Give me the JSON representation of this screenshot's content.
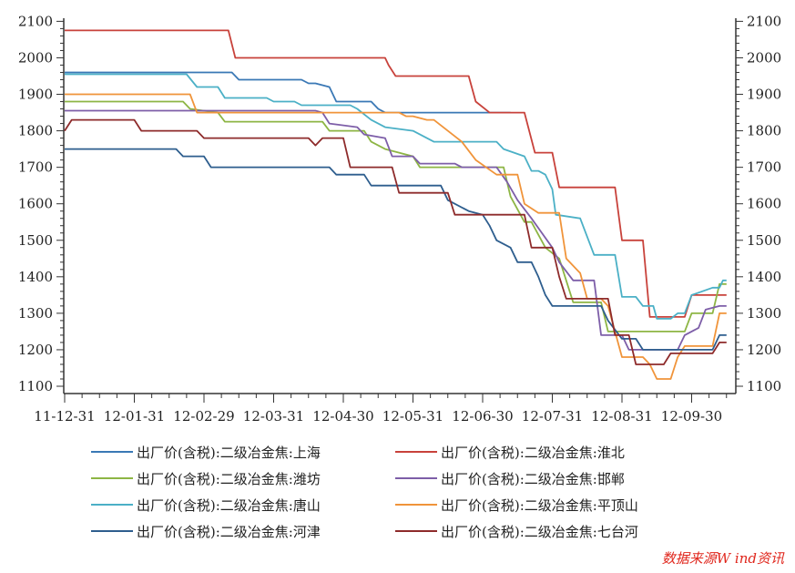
{
  "chart_data": {
    "type": "line",
    "title": "",
    "xlabel": "",
    "ylabel": "",
    "ylim": [
      1100,
      2100
    ],
    "yticks": [
      1100,
      1200,
      1300,
      1400,
      1500,
      1600,
      1700,
      1800,
      1900,
      2000,
      2100
    ],
    "y_axis_right": true,
    "grid": false,
    "legend_position": "bottom",
    "x_tick_labels": [
      "11-12-31",
      "12-01-31",
      "12-02-29",
      "12-03-31",
      "12-04-30",
      "12-05-31",
      "12-06-30",
      "12-07-31",
      "12-08-31",
      "12-09-30"
    ],
    "x_ticks_month_index": [
      0,
      1,
      2,
      3,
      4,
      5,
      6,
      7,
      8,
      9
    ],
    "x_range_month_index": [
      0,
      9.5
    ],
    "series": [
      {
        "name": "出厂价(含税):二级冶金焦:上海",
        "color": "#3a78b5",
        "points": [
          [
            0,
            1960
          ],
          [
            2.4,
            1960
          ],
          [
            2.5,
            1940
          ],
          [
            3.4,
            1940
          ],
          [
            3.5,
            1930
          ],
          [
            3.6,
            1930
          ],
          [
            3.8,
            1920
          ],
          [
            3.9,
            1880
          ],
          [
            4.4,
            1880
          ],
          [
            4.5,
            1860
          ],
          [
            4.6,
            1850
          ],
          [
            5.3,
            1850
          ],
          [
            6.3,
            1850
          ],
          [
            6.4,
            1850
          ]
        ]
      },
      {
        "name": "出厂价(含税):二级冶金焦:淮北",
        "color": "#c8423b",
        "points": [
          [
            0,
            2075
          ],
          [
            2.35,
            2075
          ],
          [
            2.45,
            2000
          ],
          [
            4.6,
            2000
          ],
          [
            4.65,
            1980
          ],
          [
            4.75,
            1950
          ],
          [
            5.8,
            1950
          ],
          [
            5.9,
            1880
          ],
          [
            6.1,
            1850
          ],
          [
            6.6,
            1850
          ],
          [
            6.75,
            1740
          ],
          [
            7.0,
            1740
          ],
          [
            7.1,
            1645
          ],
          [
            7.9,
            1645
          ],
          [
            8.0,
            1500
          ],
          [
            8.3,
            1500
          ],
          [
            8.4,
            1290
          ],
          [
            8.5,
            1290
          ],
          [
            8.9,
            1290
          ],
          [
            9.0,
            1350
          ],
          [
            9.5,
            1350
          ]
        ]
      },
      {
        "name": "出厂价(含税):二级冶金焦:潍坊",
        "color": "#8db544",
        "points": [
          [
            0,
            1880
          ],
          [
            1.7,
            1880
          ],
          [
            1.8,
            1860
          ],
          [
            2.2,
            1850
          ],
          [
            2.3,
            1825
          ],
          [
            3.7,
            1825
          ],
          [
            3.8,
            1800
          ],
          [
            4.3,
            1800
          ],
          [
            4.4,
            1770
          ],
          [
            4.6,
            1750
          ],
          [
            5.0,
            1730
          ],
          [
            5.1,
            1700
          ],
          [
            6.3,
            1700
          ],
          [
            6.4,
            1620
          ],
          [
            6.6,
            1550
          ],
          [
            6.7,
            1550
          ],
          [
            6.9,
            1480
          ],
          [
            7.1,
            1450
          ],
          [
            7.3,
            1330
          ],
          [
            7.7,
            1330
          ],
          [
            7.8,
            1250
          ],
          [
            8.8,
            1250
          ],
          [
            8.9,
            1250
          ],
          [
            9.0,
            1300
          ],
          [
            9.3,
            1300
          ],
          [
            9.4,
            1380
          ],
          [
            9.5,
            1380
          ]
        ]
      },
      {
        "name": "出厂价(含税):二级冶金焦:邯郸",
        "color": "#7d5ea8",
        "points": [
          [
            0,
            1855
          ],
          [
            3.6,
            1855
          ],
          [
            3.7,
            1850
          ],
          [
            3.8,
            1820
          ],
          [
            4.2,
            1810
          ],
          [
            4.3,
            1790
          ],
          [
            4.6,
            1780
          ],
          [
            4.7,
            1730
          ],
          [
            5.0,
            1730
          ],
          [
            5.1,
            1710
          ],
          [
            5.6,
            1710
          ],
          [
            5.7,
            1700
          ],
          [
            6.2,
            1700
          ],
          [
            6.35,
            1660
          ],
          [
            6.5,
            1610
          ],
          [
            6.7,
            1560
          ],
          [
            7.0,
            1480
          ],
          [
            7.1,
            1440
          ],
          [
            7.3,
            1390
          ],
          [
            7.6,
            1390
          ],
          [
            7.7,
            1240
          ],
          [
            8.0,
            1240
          ],
          [
            8.1,
            1200
          ],
          [
            8.8,
            1200
          ],
          [
            8.9,
            1240
          ],
          [
            9.1,
            1260
          ],
          [
            9.2,
            1310
          ],
          [
            9.4,
            1320
          ],
          [
            9.5,
            1320
          ]
        ]
      },
      {
        "name": "出厂价(含税):二级冶金焦:唐山",
        "color": "#4bb0c6",
        "points": [
          [
            0,
            1955
          ],
          [
            1.75,
            1955
          ],
          [
            1.9,
            1920
          ],
          [
            2.2,
            1920
          ],
          [
            2.3,
            1890
          ],
          [
            2.9,
            1890
          ],
          [
            3.0,
            1880
          ],
          [
            3.3,
            1880
          ],
          [
            3.4,
            1870
          ],
          [
            4.1,
            1870
          ],
          [
            4.2,
            1860
          ],
          [
            4.4,
            1830
          ],
          [
            4.6,
            1810
          ],
          [
            5.0,
            1800
          ],
          [
            5.3,
            1770
          ],
          [
            6.2,
            1770
          ],
          [
            6.3,
            1750
          ],
          [
            6.6,
            1730
          ],
          [
            6.7,
            1690
          ],
          [
            6.8,
            1690
          ],
          [
            6.9,
            1680
          ],
          [
            7.0,
            1640
          ],
          [
            7.05,
            1570
          ],
          [
            7.4,
            1560
          ],
          [
            7.6,
            1460
          ],
          [
            7.9,
            1460
          ],
          [
            8.0,
            1345
          ],
          [
            8.2,
            1345
          ],
          [
            8.3,
            1320
          ],
          [
            8.45,
            1320
          ],
          [
            8.5,
            1285
          ],
          [
            8.7,
            1285
          ],
          [
            8.8,
            1300
          ],
          [
            8.9,
            1300
          ],
          [
            9.0,
            1350
          ],
          [
            9.3,
            1370
          ],
          [
            9.4,
            1370
          ],
          [
            9.45,
            1390
          ],
          [
            9.5,
            1390
          ]
        ]
      },
      {
        "name": "出厂价(含税):二级冶金焦:平顶山",
        "color": "#f0943a",
        "points": [
          [
            0,
            1900
          ],
          [
            1.8,
            1900
          ],
          [
            1.9,
            1850
          ],
          [
            4.8,
            1850
          ],
          [
            4.9,
            1840
          ],
          [
            5.0,
            1840
          ],
          [
            5.2,
            1830
          ],
          [
            5.3,
            1830
          ],
          [
            5.7,
            1770
          ],
          [
            5.9,
            1720
          ],
          [
            6.2,
            1680
          ],
          [
            6.5,
            1680
          ],
          [
            6.6,
            1600
          ],
          [
            6.8,
            1575
          ],
          [
            7.1,
            1575
          ],
          [
            7.2,
            1450
          ],
          [
            7.4,
            1410
          ],
          [
            7.5,
            1340
          ],
          [
            7.7,
            1340
          ],
          [
            7.8,
            1320
          ],
          [
            8.0,
            1180
          ],
          [
            8.3,
            1180
          ],
          [
            8.4,
            1160
          ],
          [
            8.5,
            1120
          ],
          [
            8.7,
            1120
          ],
          [
            8.8,
            1180
          ],
          [
            8.9,
            1210
          ],
          [
            9.3,
            1210
          ],
          [
            9.4,
            1300
          ],
          [
            9.5,
            1300
          ]
        ]
      },
      {
        "name": "出厂价(含税):二级冶金焦:河津",
        "color": "#2e5e8e",
        "points": [
          [
            0,
            1750
          ],
          [
            1.6,
            1750
          ],
          [
            1.7,
            1730
          ],
          [
            2.0,
            1730
          ],
          [
            2.1,
            1700
          ],
          [
            3.8,
            1700
          ],
          [
            3.9,
            1680
          ],
          [
            4.3,
            1680
          ],
          [
            4.4,
            1650
          ],
          [
            5.4,
            1650
          ],
          [
            5.5,
            1610
          ],
          [
            5.8,
            1580
          ],
          [
            6.0,
            1570
          ],
          [
            6.1,
            1540
          ],
          [
            6.2,
            1500
          ],
          [
            6.4,
            1480
          ],
          [
            6.5,
            1440
          ],
          [
            6.7,
            1440
          ],
          [
            6.8,
            1400
          ],
          [
            6.9,
            1350
          ],
          [
            7.0,
            1320
          ],
          [
            7.7,
            1320
          ],
          [
            7.8,
            1280
          ],
          [
            8.0,
            1230
          ],
          [
            8.2,
            1230
          ],
          [
            8.3,
            1200
          ],
          [
            9.3,
            1200
          ],
          [
            9.4,
            1240
          ],
          [
            9.5,
            1240
          ]
        ]
      },
      {
        "name": "出厂价(含税):二级冶金焦:七台河",
        "color": "#8e2b2b",
        "points": [
          [
            0,
            1800
          ],
          [
            0.1,
            1830
          ],
          [
            1.0,
            1830
          ],
          [
            1.1,
            1800
          ],
          [
            1.9,
            1800
          ],
          [
            2.0,
            1780
          ],
          [
            3.5,
            1780
          ],
          [
            3.6,
            1760
          ],
          [
            3.7,
            1780
          ],
          [
            4.0,
            1780
          ],
          [
            4.1,
            1700
          ],
          [
            4.7,
            1700
          ],
          [
            4.8,
            1630
          ],
          [
            5.5,
            1630
          ],
          [
            5.6,
            1570
          ],
          [
            6.6,
            1570
          ],
          [
            6.7,
            1480
          ],
          [
            7.0,
            1480
          ],
          [
            7.1,
            1400
          ],
          [
            7.2,
            1340
          ],
          [
            7.8,
            1340
          ],
          [
            7.9,
            1240
          ],
          [
            8.1,
            1240
          ],
          [
            8.2,
            1160
          ],
          [
            8.6,
            1160
          ],
          [
            8.7,
            1190
          ],
          [
            9.3,
            1190
          ],
          [
            9.4,
            1220
          ],
          [
            9.5,
            1220
          ]
        ]
      }
    ]
  },
  "source_note": "数据来源W ind资讯"
}
